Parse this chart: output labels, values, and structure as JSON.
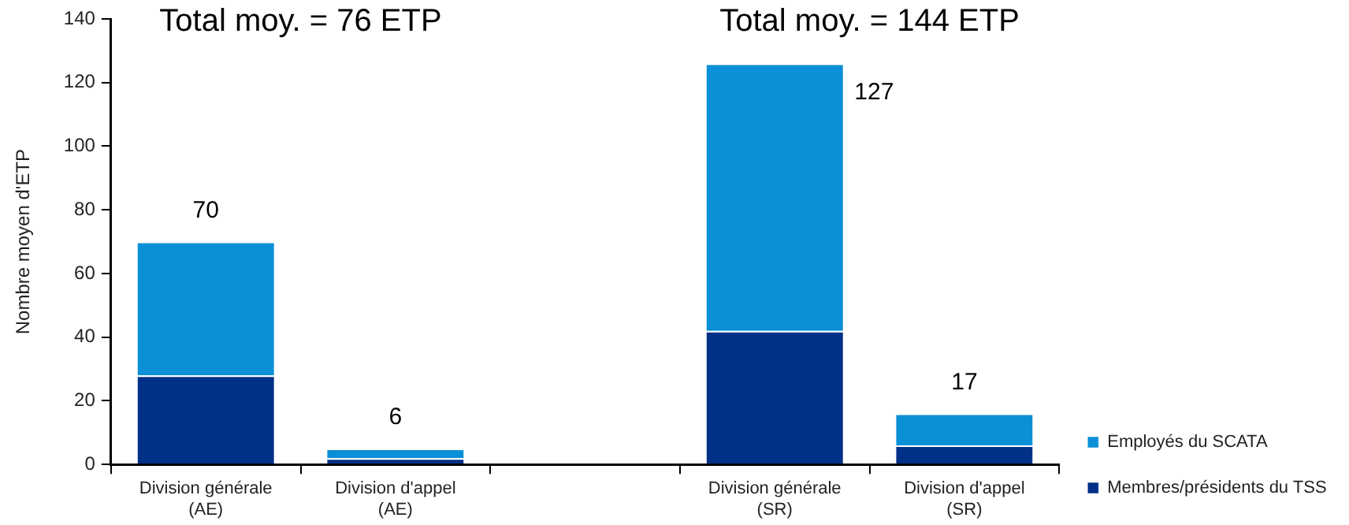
{
  "chart_data": {
    "type": "bar",
    "stacked": true,
    "ylabel": "Nombre moyen d'ETP",
    "categories": [
      "Division générale\n(AE)",
      "Division d'appel\n(AE)",
      null,
      "Division générale\n(SR)",
      "Division d'appel\n(SR)"
    ],
    "series": [
      {
        "name": "Membres/présidents du TSS",
        "color": "#003087",
        "values": [
          28,
          2,
          null,
          42,
          6
        ]
      },
      {
        "name": "Employés du SCATA",
        "color": "#0b8fd6",
        "values": [
          42,
          3,
          null,
          84,
          10
        ]
      }
    ],
    "totals": [
      "70",
      "6",
      null,
      "127",
      "17"
    ],
    "annotations": [
      "Total moy. = 76 ETP",
      "Total moy. = 144 ETP"
    ],
    "ylim": [
      0,
      140
    ],
    "yticks": [
      0,
      20,
      40,
      60,
      80,
      100,
      120,
      140
    ],
    "grid": false,
    "legend": "right"
  }
}
